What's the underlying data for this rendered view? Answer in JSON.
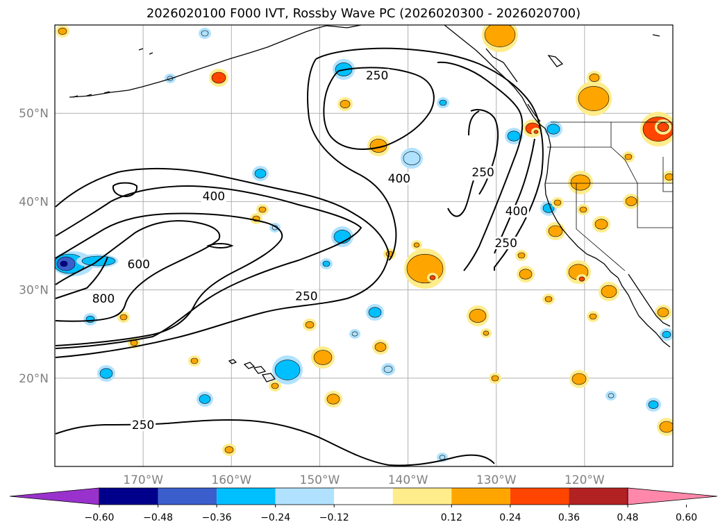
{
  "title": "2026020100 F000 IVT, Rossby Wave PC (2026020300 - 2026020700)",
  "lat_ticks": [
    {
      "label": "50°N",
      "lat": 50
    },
    {
      "label": "40°N",
      "lat": 40
    },
    {
      "label": "30°N",
      "lat": 30
    },
    {
      "label": "20°N",
      "lat": 20
    }
  ],
  "lon_ticks": [
    {
      "label": "170°W",
      "lon": -170
    },
    {
      "label": "160°W",
      "lon": -160
    },
    {
      "label": "150°W",
      "lon": -150
    },
    {
      "label": "140°W",
      "lon": -140
    },
    {
      "label": "130°W",
      "lon": -130
    },
    {
      "label": "120°W",
      "lon": -120
    }
  ],
  "contour_labels": [
    {
      "text": "250",
      "lon": -143.5,
      "lat": 54.0
    },
    {
      "text": "400",
      "lon": -141.0,
      "lat": 42.3
    },
    {
      "text": "250",
      "lon": -131.5,
      "lat": 43.0
    },
    {
      "text": "400",
      "lon": -162.0,
      "lat": 40.3
    },
    {
      "text": "400",
      "lon": -127.7,
      "lat": 38.6
    },
    {
      "text": "600",
      "lon": -170.5,
      "lat": 32.6
    },
    {
      "text": "250",
      "lon": -128.9,
      "lat": 35.0
    },
    {
      "text": "800",
      "lon": -174.5,
      "lat": 28.7
    },
    {
      "text": "250",
      "lon": -151.5,
      "lat": 29.0
    },
    {
      "text": "250",
      "lon": -170.0,
      "lat": 14.4
    }
  ],
  "colorbar": {
    "tick_labels": [
      "−0.60",
      "−0.48",
      "−0.36",
      "−0.24",
      "−0.12",
      "0.12",
      "0.24",
      "0.36",
      "0.48",
      "0.60"
    ],
    "under_color": "#9932cc",
    "over_color": "#ff88aa",
    "colors": [
      "#00008b",
      "#3a5fcd",
      "#00bfff",
      "#b0e2ff",
      "#ffffff",
      "#ffec8b",
      "#ffa500",
      "#ff4500",
      "#b22222"
    ]
  },
  "pc_colors": {
    "pos_light": "#ffec8b",
    "pos_mid": "#ffa500",
    "pos_strong": "#ff4500",
    "neg_light": "#b0e2ff",
    "neg_mid": "#00bfff",
    "neg_strong": "#3a5fcd",
    "neg_max": "#00008b"
  }
}
